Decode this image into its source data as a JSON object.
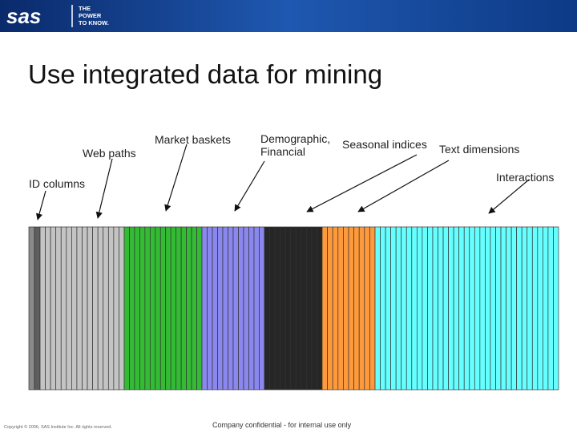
{
  "header": {
    "logo": "sas",
    "tagline": [
      "THE",
      "POWER",
      "TO KNOW."
    ]
  },
  "title": "Use integrated data for mining",
  "labels": {
    "id_columns": "ID columns",
    "web_paths": "Web paths",
    "market_baskets": "Market baskets",
    "demographic": [
      "Demographic,",
      "Financial"
    ],
    "seasonal": "Seasonal indices",
    "text_dimensions": "Text dimensions",
    "interactions": "Interactions"
  },
  "footer": {
    "copyright": "Copyright © 2006, SAS Institute Inc. All rights reserved.",
    "confidential": "Company confidential - for internal use only"
  }
}
